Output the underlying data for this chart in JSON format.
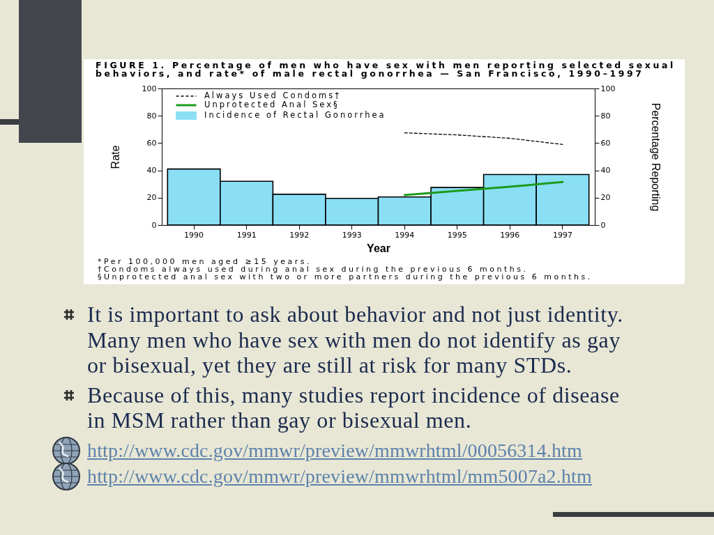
{
  "chart_data": {
    "type": "bar",
    "title": "FIGURE 1. Percentage of men who have sex with men reporting selected sexual behaviors, and rate* of male rectal gonorrhea — San Francisco, 1990–1997",
    "xlabel": "Year",
    "ylabel": "Rate",
    "y2label": "Percentage Reporting",
    "categories": [
      "1990",
      "1991",
      "1992",
      "1993",
      "1994",
      "1995",
      "1996",
      "1997"
    ],
    "series": [
      {
        "name": "Always Used Condoms†",
        "type": "line",
        "axis": "y2",
        "line_style": "dashed",
        "color": "#000000",
        "values": [
          null,
          null,
          null,
          null,
          67.5,
          66,
          63.5,
          59
        ]
      },
      {
        "name": "Unprotected Anal Sex§",
        "type": "line",
        "axis": "y2",
        "line_style": "solid",
        "color": "#1d9a1d",
        "values": [
          null,
          null,
          null,
          null,
          22,
          25,
          28,
          31.5
        ]
      },
      {
        "name": "Incidence of Rectal Gonorrhea",
        "color": "#8adff5",
        "values": [
          41,
          32,
          22.5,
          19.5,
          20.5,
          27.5,
          37,
          37
        ]
      }
    ],
    "ylim": [
      0,
      100
    ],
    "yticks": [
      0,
      20,
      40,
      60,
      80,
      100
    ],
    "y2lim": [
      0,
      100
    ],
    "y2ticks": [
      0,
      20,
      40,
      60,
      80,
      100
    ],
    "legend": "top left",
    "annotations": [
      "*Per 100,000 men aged ≥15 years.",
      "†Condoms always used during anal sex during the previous 6 months.",
      "§Unprotected anal sex with two or more partners during the previous 6 months.",
      "It is important to ask about behavior and not just identity. Many men who have sex with men do not identify as gay or bisexual, yet they are still at risk for many STDs.",
      "Because of this, many studies report incidence of disease in MSM rather than gay or bisexual men.",
      "http://www.cdc.gov/mmwr/preview/mmwrhtml/00056314.htm",
      "http://www.cdc.gov/mmwr/preview/mmwrhtml/mm5007a2.htm"
    ]
  }
}
